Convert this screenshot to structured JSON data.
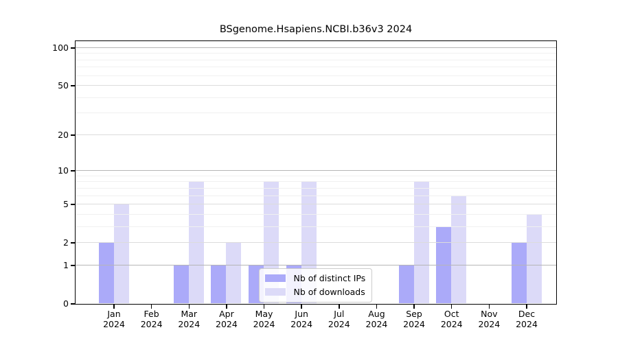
{
  "chart_data": {
    "type": "bar",
    "title": "BSgenome.Hsapiens.NCBI.b36v3 2024",
    "categories": [
      "Jan 2024",
      "Feb 2024",
      "Mar 2024",
      "Apr 2024",
      "May 2024",
      "Jun 2024",
      "Jul 2024",
      "Aug 2024",
      "Sep 2024",
      "Oct 2024",
      "Nov 2024",
      "Dec 2024"
    ],
    "x_tick_labels": [
      {
        "month": "Jan",
        "year": "2024"
      },
      {
        "month": "Feb",
        "year": "2024"
      },
      {
        "month": "Mar",
        "year": "2024"
      },
      {
        "month": "Apr",
        "year": "2024"
      },
      {
        "month": "May",
        "year": "2024"
      },
      {
        "month": "Jun",
        "year": "2024"
      },
      {
        "month": "Jul",
        "year": "2024"
      },
      {
        "month": "Aug",
        "year": "2024"
      },
      {
        "month": "Sep",
        "year": "2024"
      },
      {
        "month": "Oct",
        "year": "2024"
      },
      {
        "month": "Nov",
        "year": "2024"
      },
      {
        "month": "Dec",
        "year": "2024"
      }
    ],
    "series": [
      {
        "name": "Nb of distinct IPs",
        "color": "#abaaf9",
        "values": [
          2,
          0,
          1,
          1,
          1,
          1,
          0,
          0,
          1,
          3,
          0,
          2
        ]
      },
      {
        "name": "Nb of downloads",
        "color": "#dcdaf8",
        "values": [
          5,
          0,
          8,
          2,
          8,
          8,
          0,
          0,
          8,
          6,
          0,
          4
        ]
      }
    ],
    "y_axis": {
      "scale": "log1p",
      "range": [
        0,
        100
      ],
      "ticks": [
        0,
        1,
        2,
        5,
        10,
        20,
        50,
        100
      ],
      "tick_labels": [
        "0",
        "1",
        "2",
        "5",
        "10",
        "20",
        "50",
        "100"
      ],
      "decade_lines": [
        1,
        10,
        100
      ],
      "minor_gridlines": [
        3,
        4,
        6,
        7,
        8,
        9,
        30,
        40,
        60,
        70,
        80,
        90
      ]
    },
    "legend_position": "lower center",
    "grid": true,
    "colors": {
      "decade_gridline": "#b6b6b6",
      "major_gridline": "#dcdcdc",
      "minor_gridline": "#f0f0f0",
      "axis": "#000000",
      "background": "#ffffff"
    }
  }
}
